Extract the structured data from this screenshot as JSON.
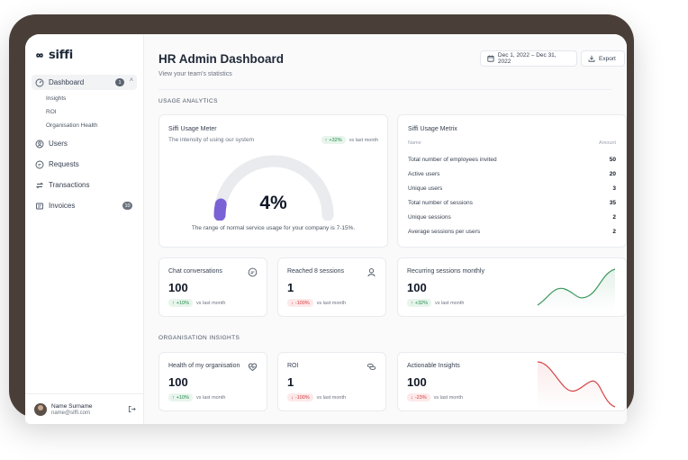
{
  "app": {
    "logo": "siffi"
  },
  "sidebar": {
    "dashboard": {
      "label": "Dashboard",
      "badge": "1"
    },
    "sub_items": [
      "Insights",
      "ROI",
      "Organisation Health"
    ],
    "users": "Users",
    "requests": "Requests",
    "transactions": "Transactions",
    "invoices": {
      "label": "Invoices",
      "badge": "10"
    },
    "profile": {
      "name": "Name Surname",
      "email": "name@siffi.com"
    }
  },
  "header": {
    "title": "HR Admin Dashboard",
    "subtitle": "View your team's statistics",
    "date_range": "Dec 1, 2022 – Dec 31, 2022",
    "export_label": "Export"
  },
  "sections": {
    "usage": "USAGE ANALYTICS",
    "org": "ORGANISATION INSIGHTS"
  },
  "meter": {
    "title": "Siffi Usage Meter",
    "subtitle": "The intensity of using our system",
    "trend": "+32%",
    "vs": "vs last month",
    "value": "4%",
    "value_fraction": 0.04,
    "footnote": "The range of normal service usage for your company is 7-15%."
  },
  "matrix": {
    "title": "Siffi Usage Metrix",
    "col_name": "Name",
    "col_amount": "Amount",
    "rows": [
      {
        "name": "Total number of employees invited",
        "amount": "50"
      },
      {
        "name": "Active users",
        "amount": "20"
      },
      {
        "name": "Unique users",
        "amount": "3"
      },
      {
        "name": "Total number of sessions",
        "amount": "35"
      },
      {
        "name": "Unique sessions",
        "amount": "2"
      },
      {
        "name": "Average sessions per users",
        "amount": "2"
      }
    ]
  },
  "cards": {
    "chat": {
      "title": "Chat conversations",
      "value": "100",
      "trend": "+10%",
      "vs": "vs last month"
    },
    "reached": {
      "title": "Reached 8 sessions",
      "value": "1",
      "trend": "-100%",
      "vs": "vs last month"
    },
    "recurring": {
      "title": "Recurring sessions monthly",
      "value": "100",
      "trend": "+32%",
      "vs": "vs last month"
    },
    "health": {
      "title": "Health of my organisation",
      "value": "100",
      "trend": "+10%",
      "vs": "vs last month"
    },
    "roi": {
      "title": "ROI",
      "value": "1",
      "trend": "-100%",
      "vs": "vs last month"
    },
    "actionable": {
      "title": "Actionable Insights",
      "value": "100",
      "trend": "-23%",
      "vs": "vs last month"
    }
  },
  "colors": {
    "accent": "#7b61d6",
    "up": "#22894d",
    "down": "#d23a3a",
    "frame": "#4a3f38"
  },
  "icons": [
    "infinity-logo-icon",
    "dashboard-icon",
    "users-icon",
    "requests-icon",
    "transactions-icon",
    "invoices-icon",
    "calendar-icon",
    "export-icon",
    "chat-icon",
    "person-icon",
    "heart-pulse-icon",
    "coins-icon",
    "logout-icon"
  ]
}
